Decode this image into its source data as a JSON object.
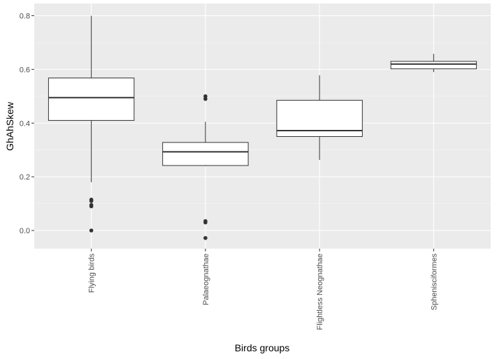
{
  "chart_data": {
    "type": "boxplot",
    "xlabel": "Birds groups",
    "ylabel": "GhAhSkew",
    "ylim": [
      -0.07,
      0.82
    ],
    "yticks": [
      0.0,
      0.2,
      0.4,
      0.6,
      0.8
    ],
    "ytick_labels": [
      "0.0",
      "0.2",
      "0.4",
      "0.6",
      "0.8"
    ],
    "x_tick_rotation": "vertical",
    "grid": true,
    "legend": "none",
    "colors": {
      "panel_background": "#ebebeb",
      "grid_major": "#ffffff",
      "grid_minor": "#f5f5f5",
      "box_fill": "#ffffff",
      "box_line": "#333333",
      "outlier": "#333333"
    },
    "categories": [
      "Flying birds",
      "Palaeognathae",
      "Flightless Neognathae",
      "Sphenisciformes"
    ],
    "boxes": [
      {
        "category": "Flying birds",
        "whisker_low": 0.18,
        "q1": 0.41,
        "median": 0.495,
        "q3": 0.568,
        "whisker_high": 0.8,
        "outliers": [
          0.115,
          0.11,
          0.095,
          0.09,
          0.0
        ]
      },
      {
        "category": "Palaeognathae",
        "whisker_low": 0.24,
        "q1": 0.242,
        "median": 0.293,
        "q3": 0.328,
        "whisker_high": 0.405,
        "outliers": [
          0.5,
          0.49,
          0.035,
          0.03,
          -0.028
        ]
      },
      {
        "category": "Flightless Neognathae",
        "whisker_low": 0.263,
        "q1": 0.35,
        "median": 0.372,
        "q3": 0.485,
        "whisker_high": 0.578,
        "outliers": []
      },
      {
        "category": "Sphenisciformes",
        "whisker_low": 0.59,
        "q1": 0.602,
        "median": 0.62,
        "q3": 0.63,
        "whisker_high": 0.658,
        "outliers": []
      }
    ]
  }
}
